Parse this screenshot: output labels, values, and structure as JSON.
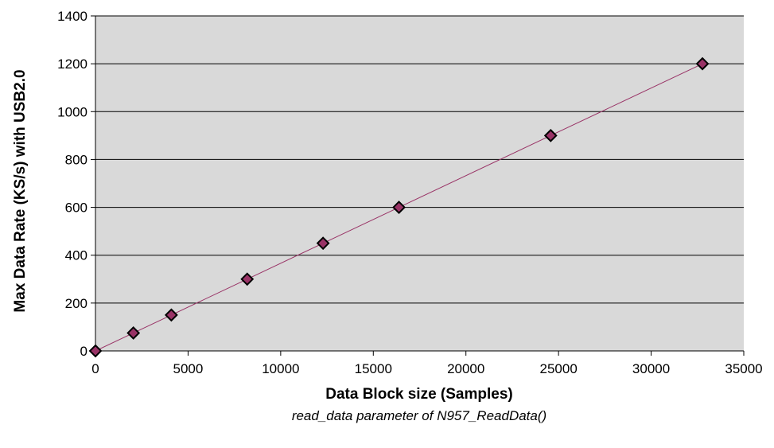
{
  "chart_data": {
    "type": "line",
    "xlabel": "Data Block size (Samples)",
    "xsublabel": "read_data parameter of N957_ReadData()",
    "ylabel": "Max Data Rate (KS/s) with USB2.0",
    "xlim": [
      0,
      35000
    ],
    "ylim": [
      0,
      1400
    ],
    "xticks": [
      0,
      5000,
      10000,
      15000,
      20000,
      25000,
      30000,
      35000
    ],
    "yticks": [
      0,
      200,
      400,
      600,
      800,
      1000,
      1200,
      1400
    ],
    "grid": "horizontal",
    "legend": "none",
    "series": [
      {
        "x": [
          0,
          2048,
          4096,
          8192,
          12288,
          16384,
          24576,
          32768
        ],
        "values": [
          0,
          75,
          150,
          300,
          450,
          600,
          900,
          1200
        ],
        "marker": "diamond",
        "marker_color": "#993366",
        "line_color": "#993366"
      }
    ],
    "plot_background": "#d9d9d9"
  }
}
